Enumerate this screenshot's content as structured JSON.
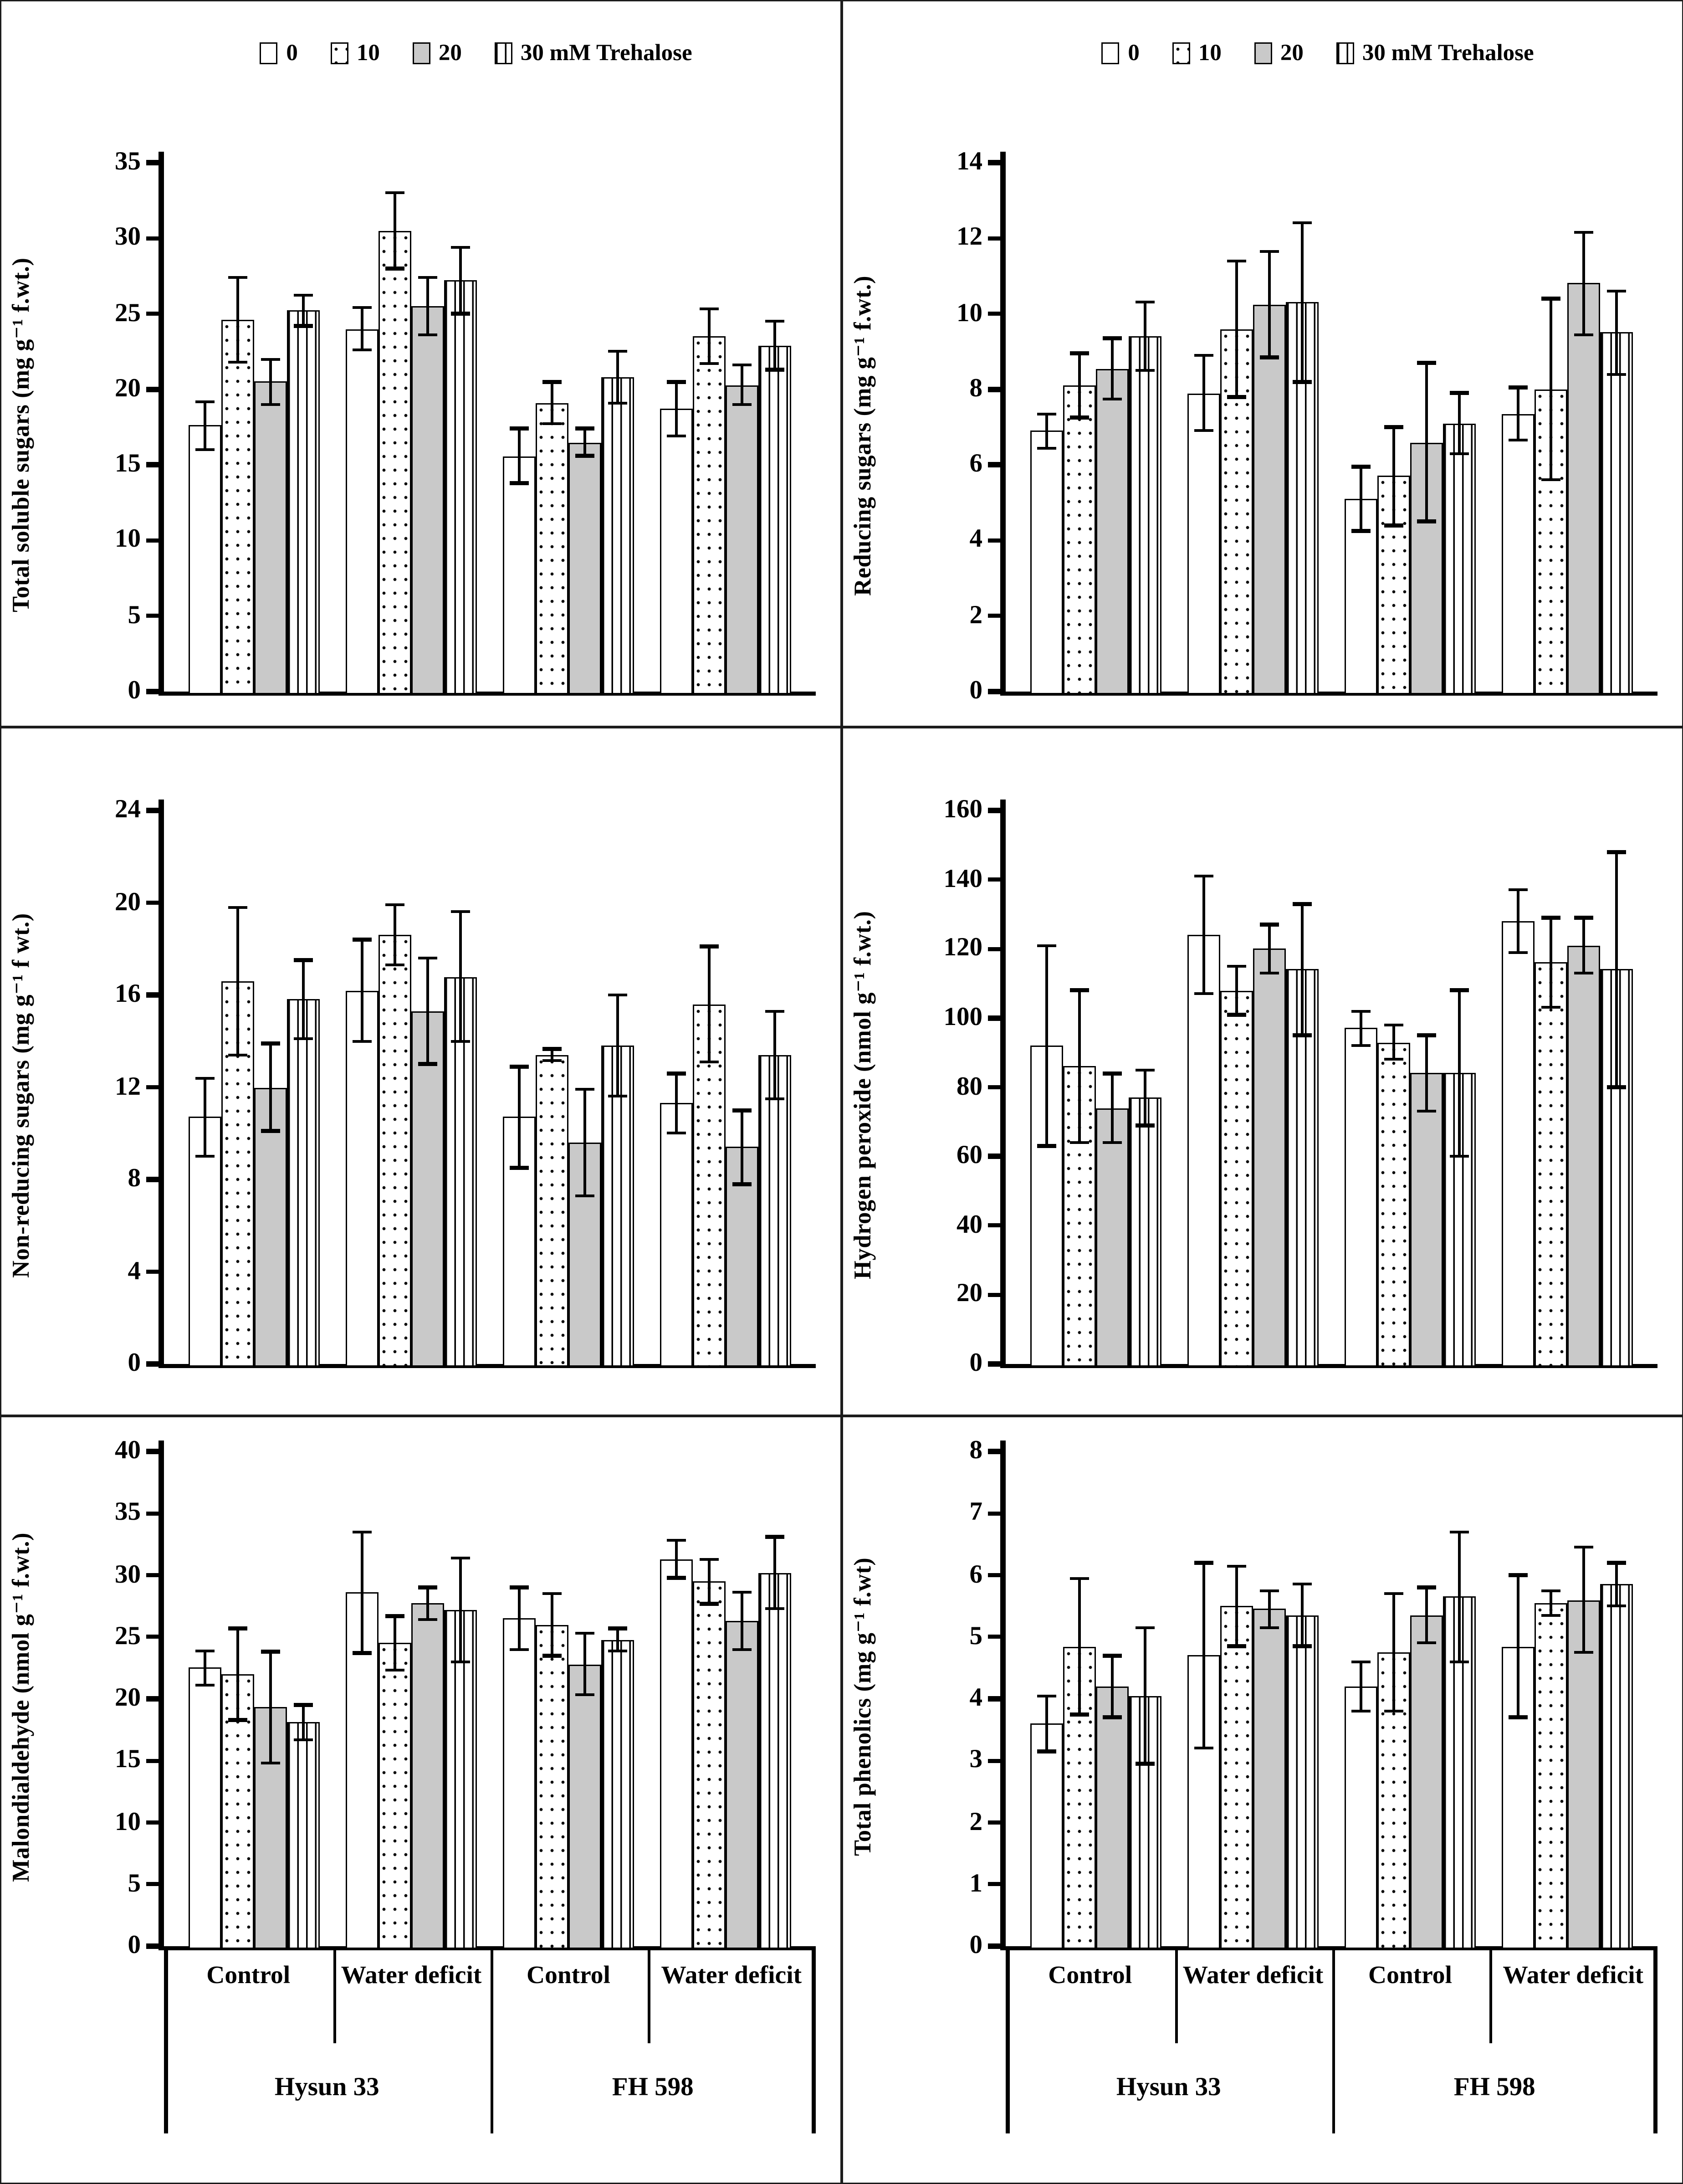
{
  "figure": {
    "background": "#ffffff",
    "ink": "#000000",
    "bar_gray": "#c9c9c9"
  },
  "legend": {
    "items": [
      {
        "label": "0",
        "pattern": "plain"
      },
      {
        "label": "10",
        "pattern": "dots"
      },
      {
        "label": "20",
        "pattern": "gray"
      },
      {
        "label": "30 mM Trehalose",
        "pattern": "vlines"
      }
    ]
  },
  "x_axis": {
    "treatments": [
      "Control",
      "Water deficit",
      "Control",
      "Water deficit"
    ],
    "cultivars": [
      "Hysun 33",
      "FH 598"
    ]
  },
  "chart_data": [
    {
      "id": "total-soluble-sugars",
      "type": "bar",
      "position": "top-left",
      "legend_visible": true,
      "ylabel": "Total soluble sugars  (mg g⁻¹ f.wt.)",
      "ylim": [
        0,
        35
      ],
      "yticks": [
        0,
        5,
        10,
        15,
        20,
        25,
        30,
        35
      ],
      "grid": false,
      "categories": [
        "Hysun 33 / Control",
        "Hysun 33 / Water deficit",
        "FH 598 / Control",
        "FH 598 / Water deficit"
      ],
      "series": [
        {
          "name": "0",
          "pattern": "plain",
          "values": [
            17.6,
            24.0,
            15.6,
            18.7
          ],
          "errors": [
            1.6,
            1.4,
            1.8,
            1.8
          ]
        },
        {
          "name": "10",
          "pattern": "dots",
          "values": [
            24.6,
            30.5,
            19.1,
            23.5
          ],
          "errors": [
            2.8,
            2.5,
            1.4,
            1.8
          ]
        },
        {
          "name": "20",
          "pattern": "gray",
          "values": [
            20.5,
            25.5,
            16.5,
            20.3
          ],
          "errors": [
            1.5,
            1.9,
            0.9,
            1.3
          ]
        },
        {
          "name": "30 mM Trehalose",
          "pattern": "vlines",
          "values": [
            25.2,
            27.2,
            20.8,
            22.9
          ],
          "errors": [
            1.0,
            2.2,
            1.7,
            1.6
          ]
        }
      ]
    },
    {
      "id": "reducing-sugars",
      "type": "bar",
      "position": "top-right",
      "legend_visible": true,
      "ylabel": "Reducing sugars (mg g⁻¹ f.wt.)",
      "ylim": [
        0,
        14
      ],
      "yticks": [
        0,
        2,
        4,
        6,
        8,
        10,
        12,
        14
      ],
      "grid": false,
      "categories": [
        "Hysun 33 / Control",
        "Hysun 33 / Water deficit",
        "FH 598 / Control",
        "FH 598 / Water deficit"
      ],
      "series": [
        {
          "name": "0",
          "pattern": "plain",
          "values": [
            6.9,
            7.9,
            5.1,
            7.35
          ],
          "errors": [
            0.45,
            1.0,
            0.85,
            0.7
          ]
        },
        {
          "name": "10",
          "pattern": "dots",
          "values": [
            8.1,
            9.6,
            5.7,
            8.0
          ],
          "errors": [
            0.85,
            1.8,
            1.3,
            2.4
          ]
        },
        {
          "name": "20",
          "pattern": "gray",
          "values": [
            8.55,
            10.25,
            6.6,
            10.8
          ],
          "errors": [
            0.8,
            1.4,
            2.1,
            1.35
          ]
        },
        {
          "name": "30 mM Trehalose",
          "pattern": "vlines",
          "values": [
            9.4,
            10.3,
            7.1,
            9.5
          ],
          "errors": [
            0.9,
            2.1,
            0.8,
            1.1
          ]
        }
      ]
    },
    {
      "id": "non-reducing-sugars",
      "type": "bar",
      "position": "middle-left",
      "legend_visible": false,
      "ylabel": "Non-reducing sugars (mg g⁻¹ f wt.)",
      "ylim": [
        0,
        24
      ],
      "yticks": [
        0,
        4,
        8,
        12,
        16,
        20,
        24
      ],
      "grid": false,
      "categories": [
        "Hysun 33 / Control",
        "Hysun 33 / Water deficit",
        "FH 598 / Control",
        "FH 598 / Water deficit"
      ],
      "series": [
        {
          "name": "0",
          "pattern": "plain",
          "values": [
            10.7,
            16.2,
            10.7,
            11.3
          ],
          "errors": [
            1.7,
            2.2,
            2.2,
            1.3
          ]
        },
        {
          "name": "10",
          "pattern": "dots",
          "values": [
            16.6,
            18.6,
            13.4,
            15.6
          ],
          "errors": [
            3.2,
            1.3,
            0.25,
            2.5
          ]
        },
        {
          "name": "20",
          "pattern": "gray",
          "values": [
            12.0,
            15.3,
            9.6,
            9.4
          ],
          "errors": [
            1.9,
            2.3,
            2.3,
            1.6
          ]
        },
        {
          "name": "30 mM Trehalose",
          "pattern": "vlines",
          "values": [
            15.8,
            16.8,
            13.8,
            13.4
          ],
          "errors": [
            1.7,
            2.8,
            2.2,
            1.9
          ]
        }
      ]
    },
    {
      "id": "hydrogen-peroxide",
      "type": "bar",
      "position": "middle-right",
      "legend_visible": false,
      "ylabel": "Hydrogen peroxide (nmol g⁻¹ f.wt.)",
      "ylim": [
        0,
        160
      ],
      "yticks": [
        0,
        20,
        40,
        60,
        80,
        100,
        120,
        140,
        160
      ],
      "grid": false,
      "categories": [
        "Hysun 33 / Control",
        "Hysun 33 / Water deficit",
        "FH 598 / Control",
        "FH 598 / Water deficit"
      ],
      "series": [
        {
          "name": "0",
          "pattern": "plain",
          "values": [
            92,
            124,
            97,
            128
          ],
          "errors": [
            29,
            17,
            5,
            9
          ]
        },
        {
          "name": "10",
          "pattern": "dots",
          "values": [
            86,
            108,
            93,
            116
          ],
          "errors": [
            22,
            7,
            5,
            13
          ]
        },
        {
          "name": "20",
          "pattern": "gray",
          "values": [
            74,
            120,
            84,
            121
          ],
          "errors": [
            10,
            7,
            11,
            8
          ]
        },
        {
          "name": "30 mM Trehalose",
          "pattern": "vlines",
          "values": [
            77,
            114,
            84,
            114
          ],
          "errors": [
            8,
            19,
            24,
            34
          ]
        }
      ]
    },
    {
      "id": "malondialdehyde",
      "type": "bar",
      "position": "bottom-left",
      "legend_visible": false,
      "ylabel": "Malondialdehyde (nmol g⁻¹ f.wt.)",
      "ylim": [
        0,
        40
      ],
      "yticks": [
        0,
        5,
        10,
        15,
        20,
        25,
        30,
        35,
        40
      ],
      "grid": false,
      "categories": [
        "Hysun 33 / Control",
        "Hysun 33 / Water deficit",
        "FH 598 / Control",
        "FH 598 / Water deficit"
      ],
      "series": [
        {
          "name": "0",
          "pattern": "plain",
          "values": [
            22.5,
            28.6,
            26.5,
            31.3
          ],
          "errors": [
            1.4,
            4.9,
            2.5,
            1.5
          ]
        },
        {
          "name": "10",
          "pattern": "dots",
          "values": [
            22.0,
            24.5,
            26.0,
            29.5
          ],
          "errors": [
            3.7,
            2.2,
            2.5,
            1.8
          ]
        },
        {
          "name": "20",
          "pattern": "gray",
          "values": [
            19.3,
            27.7,
            22.8,
            26.3
          ],
          "errors": [
            4.5,
            1.3,
            2.5,
            2.3
          ]
        },
        {
          "name": "30 mM Trehalose",
          "pattern": "vlines",
          "values": [
            18.1,
            27.2,
            24.8,
            30.2
          ],
          "errors": [
            1.4,
            4.2,
            0.9,
            2.9
          ]
        }
      ]
    },
    {
      "id": "total-phenolics",
      "type": "bar",
      "position": "bottom-right",
      "legend_visible": false,
      "ylabel": "Total phenolics (mg g⁻¹ f.wt)",
      "ylim": [
        0,
        8
      ],
      "yticks": [
        0,
        1,
        2,
        3,
        4,
        5,
        6,
        7,
        8
      ],
      "grid": false,
      "categories": [
        "Hysun 33 / Control",
        "Hysun 33 / Water deficit",
        "FH 598 / Control",
        "FH 598 / Water deficit"
      ],
      "series": [
        {
          "name": "0",
          "pattern": "plain",
          "values": [
            3.6,
            4.7,
            4.2,
            4.85
          ],
          "errors": [
            0.45,
            1.5,
            0.4,
            1.15
          ]
        },
        {
          "name": "10",
          "pattern": "dots",
          "values": [
            4.85,
            5.5,
            4.75,
            5.55
          ],
          "errors": [
            1.1,
            0.65,
            0.95,
            0.2
          ]
        },
        {
          "name": "20",
          "pattern": "gray",
          "values": [
            4.2,
            5.45,
            5.35,
            5.6
          ],
          "errors": [
            0.5,
            0.3,
            0.45,
            0.85
          ]
        },
        {
          "name": "30 mM Trehalose",
          "pattern": "vlines",
          "values": [
            4.05,
            5.35,
            5.65,
            5.85
          ],
          "errors": [
            1.1,
            0.5,
            1.05,
            0.35
          ]
        }
      ]
    }
  ]
}
